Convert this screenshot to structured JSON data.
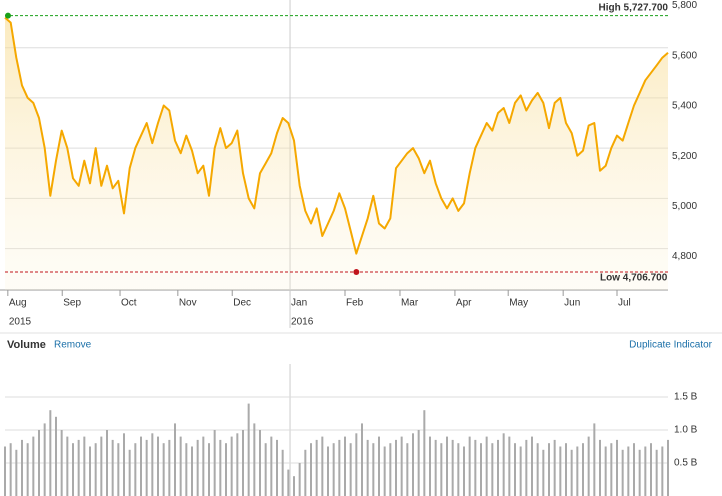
{
  "chart_data": [
    {
      "type": "line",
      "color": "#f5a800",
      "values": [
        5720,
        5700,
        5560,
        5450,
        5400,
        5380,
        5320,
        5200,
        5010,
        5150,
        5270,
        5200,
        5080,
        5050,
        5150,
        5060,
        5200,
        5050,
        5130,
        5040,
        5070,
        4940,
        5120,
        5200,
        5250,
        5300,
        5220,
        5300,
        5370,
        5350,
        5230,
        5180,
        5250,
        5190,
        5100,
        5130,
        5010,
        5200,
        5280,
        5200,
        5220,
        5270,
        5100,
        5000,
        4960,
        5100,
        5140,
        5180,
        5260,
        5320,
        5300,
        5230,
        5050,
        4950,
        4900,
        4960,
        4850,
        4900,
        4950,
        5020,
        4960,
        4870,
        4780,
        4850,
        4920,
        5010,
        4900,
        4880,
        4920,
        5120,
        5150,
        5180,
        5200,
        5160,
        5100,
        5150,
        5060,
        5000,
        4960,
        5000,
        4950,
        4980,
        5100,
        5200,
        5250,
        5300,
        5270,
        5340,
        5360,
        5300,
        5380,
        5410,
        5350,
        5390,
        5420,
        5380,
        5280,
        5380,
        5400,
        5300,
        5260,
        5170,
        5190,
        5290,
        5300,
        5110,
        5130,
        5200,
        5250,
        5230,
        5300,
        5370,
        5420,
        5470,
        5500,
        5530,
        5560,
        5580
      ],
      "xlim": [
        0,
        117
      ],
      "ylim": [
        4635,
        5790
      ],
      "yticks": [
        {
          "value": 4800,
          "label": "4,800"
        },
        {
          "value": 5000,
          "label": "5,000"
        },
        {
          "value": 5200,
          "label": "5,200"
        },
        {
          "value": 5400,
          "label": "5,400"
        },
        {
          "value": 5600,
          "label": "5,600"
        },
        {
          "value": 5800,
          "label": "5,800"
        }
      ],
      "xticks": [
        {
          "value": 0.5,
          "label": "Aug"
        },
        {
          "value": 10.1,
          "label": "Sep"
        },
        {
          "value": 20.3,
          "label": "Oct"
        },
        {
          "value": 30.5,
          "label": "Nov"
        },
        {
          "value": 40.1,
          "label": "Dec"
        },
        {
          "value": 50.3,
          "label": "Jan"
        },
        {
          "value": 60,
          "label": "Feb"
        },
        {
          "value": 69.7,
          "label": "Mar"
        },
        {
          "value": 79.4,
          "label": "Apr"
        },
        {
          "value": 88.8,
          "label": "May"
        },
        {
          "value": 98.5,
          "label": "Jun"
        },
        {
          "value": 108,
          "label": "Jul"
        }
      ],
      "years": [
        {
          "value": 0.5,
          "label": "2015"
        },
        {
          "value": 50.3,
          "label": "2016"
        }
      ],
      "high": {
        "value": 5727.7,
        "label": "High 5,727.700",
        "color": "#1aa01a"
      },
      "low": {
        "value": 4706.7,
        "label": "Low 4,706.700",
        "color": "#c0141c"
      },
      "grid": true
    },
    {
      "type": "bar",
      "title": "Volume",
      "color": "#aaaaaa",
      "values": [
        0.75,
        0.8,
        0.7,
        0.85,
        0.8,
        0.9,
        1.0,
        1.1,
        1.3,
        1.2,
        1.0,
        0.9,
        0.8,
        0.85,
        0.9,
        0.75,
        0.8,
        0.9,
        1.0,
        0.85,
        0.8,
        0.95,
        0.7,
        0.8,
        0.9,
        0.85,
        0.95,
        0.9,
        0.8,
        0.85,
        1.1,
        0.9,
        0.8,
        0.75,
        0.85,
        0.9,
        0.8,
        1.0,
        0.85,
        0.8,
        0.9,
        0.95,
        1.0,
        1.4,
        1.1,
        1.0,
        0.8,
        0.9,
        0.85,
        0.7,
        0.4,
        0.3,
        0.5,
        0.7,
        0.8,
        0.85,
        0.9,
        0.75,
        0.8,
        0.85,
        0.9,
        0.8,
        0.95,
        1.1,
        0.85,
        0.8,
        0.9,
        0.75,
        0.8,
        0.85,
        0.9,
        0.8,
        0.95,
        1.0,
        1.3,
        0.9,
        0.85,
        0.8,
        0.9,
        0.85,
        0.8,
        0.75,
        0.9,
        0.85,
        0.8,
        0.9,
        0.8,
        0.85,
        0.95,
        0.9,
        0.8,
        0.75,
        0.85,
        0.9,
        0.8,
        0.7,
        0.8,
        0.85,
        0.75,
        0.8,
        0.7,
        0.75,
        0.8,
        0.9,
        1.1,
        0.85,
        0.75,
        0.8,
        0.85,
        0.7,
        0.75,
        0.8,
        0.7,
        0.75,
        0.8,
        0.7,
        0.75,
        0.85
      ],
      "ylim": [
        0,
        2
      ],
      "yticks": [
        {
          "value": 0.5,
          "label": "0.5 B"
        },
        {
          "value": 1.0,
          "label": "1.0 B"
        },
        {
          "value": 1.5,
          "label": "1.5 B"
        }
      ],
      "actions": [
        "Remove",
        "Duplicate Indicator"
      ]
    }
  ]
}
